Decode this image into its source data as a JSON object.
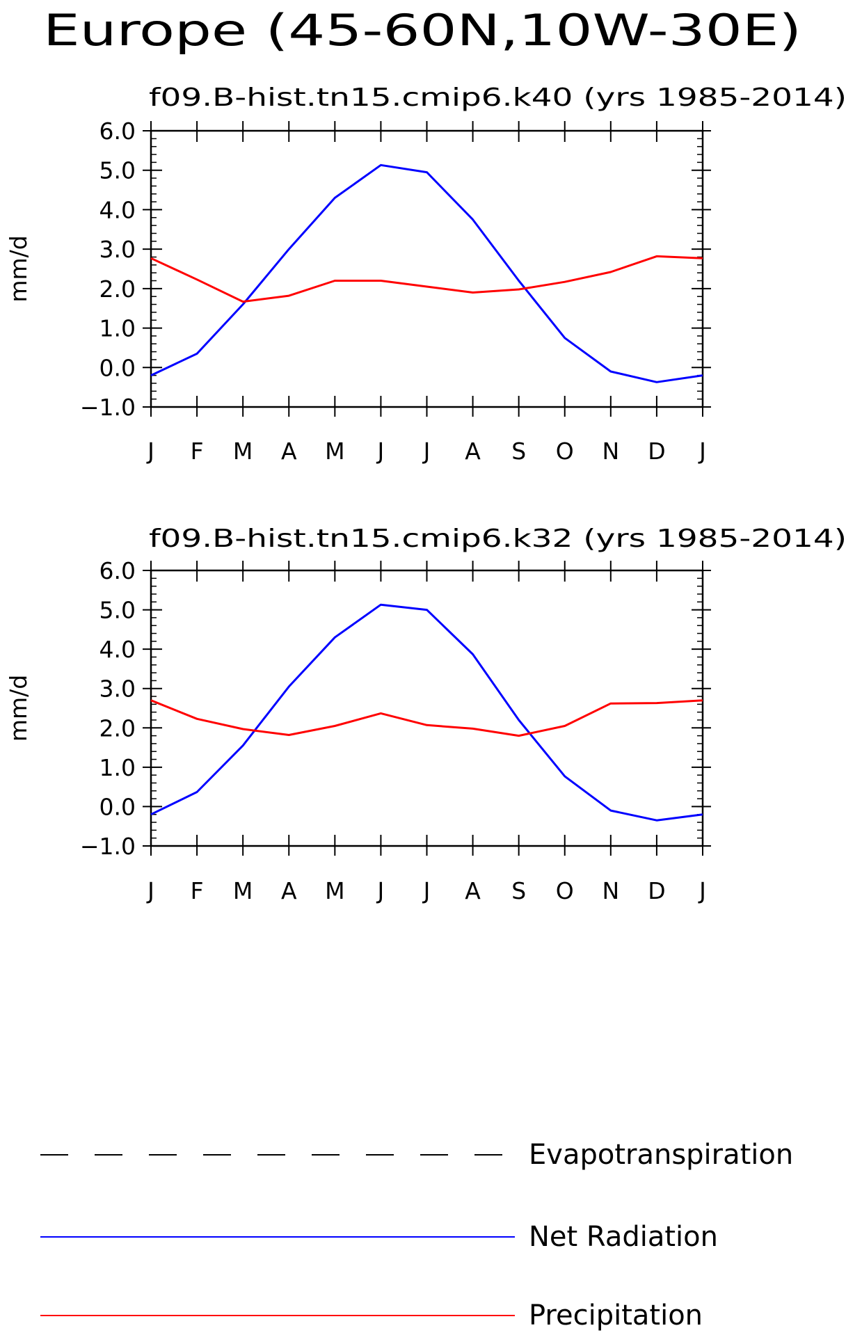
{
  "title": "Europe (45-60N,10W-30E)",
  "legend": [
    {
      "label": "Evapotranspiration",
      "color": "#000000",
      "style": "dashed"
    },
    {
      "label": "Net Radiation",
      "color": "#0000ff",
      "style": "solid"
    },
    {
      "label": "Precipitation",
      "color": "#ff0000",
      "style": "solid"
    }
  ],
  "chart_data": [
    {
      "type": "line",
      "title": "f09.B-hist.tn15.cmip6.k40 (yrs 1985-2014)",
      "ylabel": "mm/d",
      "xlabel": "",
      "categories": [
        "J",
        "F",
        "M",
        "A",
        "M",
        "J",
        "J",
        "A",
        "S",
        "O",
        "N",
        "D",
        "J"
      ],
      "ylim": [
        -1.0,
        6.0
      ],
      "yticks": [
        "6.0",
        "5.0",
        "4.0",
        "3.0",
        "2.0",
        "1.0",
        "0.0",
        "-1.0"
      ],
      "series": [
        {
          "name": "Net Radiation",
          "color": "#0000ff",
          "values": [
            -0.2,
            0.35,
            1.6,
            3.0,
            4.3,
            5.13,
            4.95,
            3.75,
            2.2,
            0.75,
            -0.1,
            -0.37,
            -0.2
          ]
        },
        {
          "name": "Precipitation",
          "color": "#ff0000",
          "values": [
            2.77,
            2.23,
            1.67,
            1.82,
            2.2,
            2.2,
            2.05,
            1.9,
            1.98,
            2.17,
            2.42,
            2.82,
            2.77
          ]
        }
      ]
    },
    {
      "type": "line",
      "title": "f09.B-hist.tn15.cmip6.k32 (yrs 1985-2014)",
      "ylabel": "mm/d",
      "xlabel": "",
      "categories": [
        "J",
        "F",
        "M",
        "A",
        "M",
        "J",
        "J",
        "A",
        "S",
        "O",
        "N",
        "D",
        "J"
      ],
      "ylim": [
        -1.0,
        6.0
      ],
      "yticks": [
        "6.0",
        "5.0",
        "4.0",
        "3.0",
        "2.0",
        "1.0",
        "0.0",
        "-1.0"
      ],
      "series": [
        {
          "name": "Net Radiation",
          "color": "#0000ff",
          "values": [
            -0.2,
            0.37,
            1.55,
            3.05,
            4.3,
            5.13,
            5.0,
            3.87,
            2.2,
            0.77,
            -0.1,
            -0.35,
            -0.2
          ]
        },
        {
          "name": "Precipitation",
          "color": "#ff0000",
          "values": [
            2.7,
            2.23,
            1.97,
            1.82,
            2.05,
            2.37,
            2.07,
            1.98,
            1.8,
            2.05,
            2.62,
            2.63,
            2.7
          ]
        }
      ]
    }
  ]
}
